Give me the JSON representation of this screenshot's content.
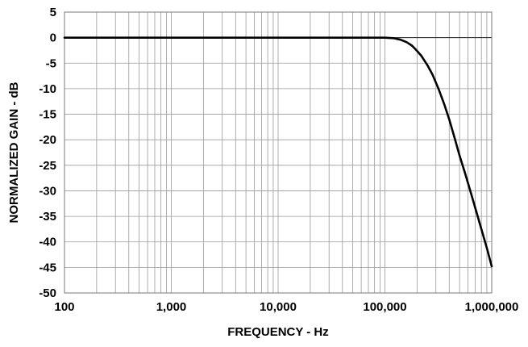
{
  "chart_data": {
    "type": "line",
    "title": "",
    "xlabel": "FREQUENCY - Hz",
    "ylabel": "NORMALIZED GAIN - dB",
    "x_scale": "log",
    "xlim": [
      100,
      1000000
    ],
    "ylim": [
      -50,
      5
    ],
    "grid": true,
    "legend": "none",
    "x_ticks": [
      {
        "value": 100,
        "label": "100"
      },
      {
        "value": 1000,
        "label": "1,000"
      },
      {
        "value": 10000,
        "label": "10,000"
      },
      {
        "value": 100000,
        "label": "100,000"
      },
      {
        "value": 1000000,
        "label": "1,000,000"
      }
    ],
    "y_ticks": [
      {
        "value": 5,
        "label": "5"
      },
      {
        "value": 0,
        "label": "0"
      },
      {
        "value": -5,
        "label": "-5"
      },
      {
        "value": -10,
        "label": "-10"
      },
      {
        "value": -15,
        "label": "-15"
      },
      {
        "value": -20,
        "label": "-20"
      },
      {
        "value": -25,
        "label": "-25"
      },
      {
        "value": -30,
        "label": "-30"
      },
      {
        "value": -35,
        "label": "-35"
      },
      {
        "value": -40,
        "label": "-40"
      },
      {
        "value": -45,
        "label": "-45"
      },
      {
        "value": -50,
        "label": "-50"
      }
    ],
    "series": [
      {
        "color": "#000000",
        "x": [
          100,
          1000,
          10000,
          50000,
          100000,
          120000,
          140000,
          160000,
          180000,
          200000,
          220000,
          250000,
          280000,
          320000,
          360000,
          400000,
          450000,
          500000,
          560000,
          630000,
          700000,
          800000,
          900000,
          1000000
        ],
        "y": [
          0,
          0,
          0,
          0,
          0,
          -0.1,
          -0.4,
          -0.9,
          -1.6,
          -2.6,
          -3.6,
          -5.4,
          -7.3,
          -10.2,
          -13.1,
          -16.0,
          -19.7,
          -23.1,
          -26.4,
          -30.0,
          -33.3,
          -37.5,
          -41.2,
          -44.8
        ]
      }
    ]
  }
}
